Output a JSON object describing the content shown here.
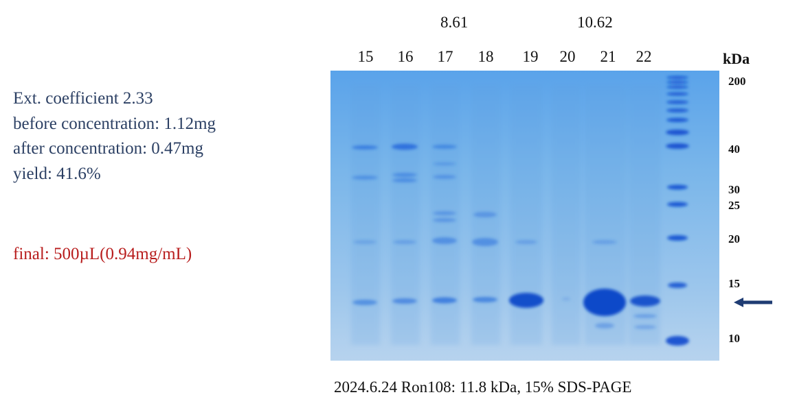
{
  "info": {
    "ext_coefficient": "Ext. coefficient  2.33",
    "before_concentration": "before concentration: 1.12mg",
    "after_concentration": "after concentration: 0.47mg",
    "yield": "yield: 41.6%",
    "final": "final: 500µL(0.94mg/mL)"
  },
  "peaks": [
    "8.61",
    "10.62"
  ],
  "lanes": [
    "15",
    "16",
    "17",
    "18",
    "19",
    "20",
    "21",
    "22"
  ],
  "marker": {
    "unit": "kDa",
    "labels": [
      "200",
      "40",
      "30",
      "25",
      "20",
      "15",
      "10"
    ]
  },
  "caption": "2024.6.24  Ron108: 11.8 kDa, 15% SDS-PAGE",
  "colors": {
    "gel_background": "#7db8e8",
    "band": "#1d5bd6",
    "arrow": "#1f3c73",
    "info_text": "#2b3f63",
    "final_text": "#b81d1d"
  }
}
